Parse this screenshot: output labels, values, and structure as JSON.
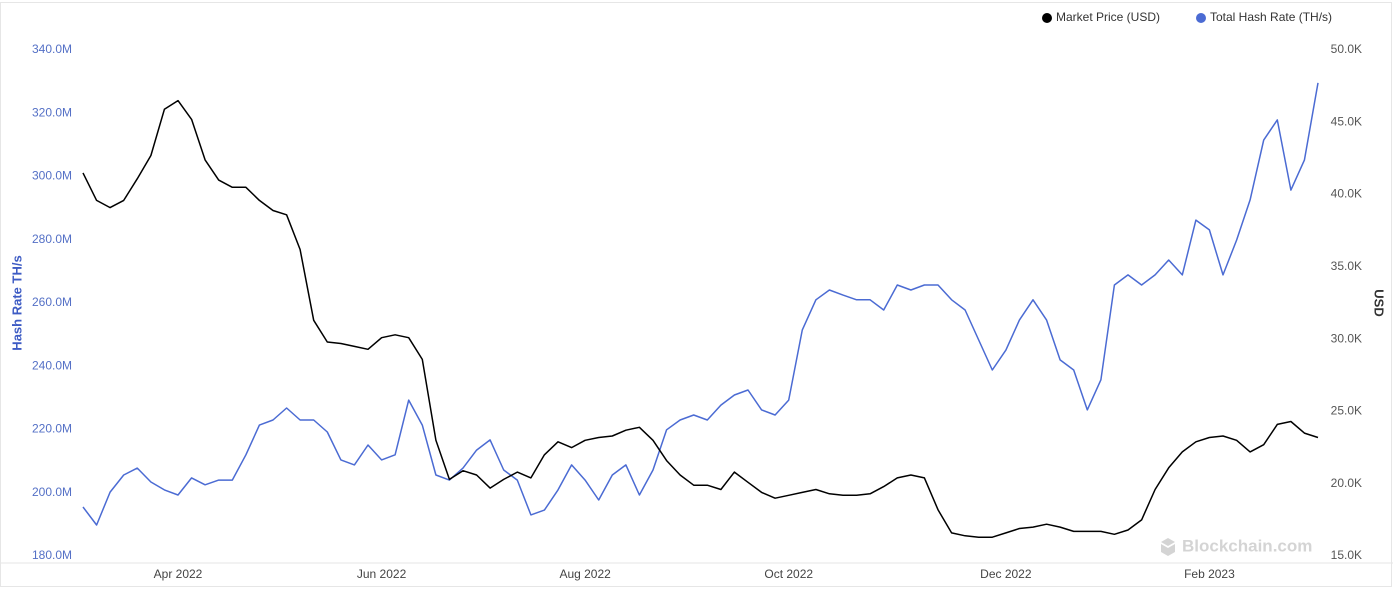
{
  "chart_data": {
    "type": "line",
    "legend": "top-right",
    "grid": false,
    "watermark": "Blockchain.com",
    "ylabel": "Hash Rate TH/s",
    "y2label": "USD",
    "categories": [
      null,
      null,
      null,
      null,
      null,
      null,
      null,
      "Apr 2022",
      null,
      null,
      null,
      null,
      null,
      null,
      null,
      null,
      null,
      null,
      null,
      null,
      null,
      null,
      "Jun 2022",
      null,
      null,
      null,
      null,
      null,
      null,
      null,
      null,
      null,
      null,
      null,
      null,
      null,
      null,
      "Aug 2022",
      null,
      null,
      null,
      null,
      null,
      null,
      null,
      null,
      null,
      null,
      null,
      null,
      null,
      null,
      "Oct 2022",
      null,
      null,
      null,
      null,
      null,
      null,
      null,
      null,
      null,
      null,
      null,
      null,
      null,
      null,
      null,
      "Dec 2022",
      null,
      null,
      null,
      null,
      null,
      null,
      null,
      null,
      null,
      null,
      null,
      null,
      null,
      null,
      "Feb 2023",
      null,
      null,
      null,
      null,
      null,
      null,
      null,
      null
    ],
    "ylim": [
      180,
      340
    ],
    "yticks": [
      {
        "value": 180,
        "label": "180.0M"
      },
      {
        "value": 200,
        "label": "200.0M"
      },
      {
        "value": 220,
        "label": "220.0M"
      },
      {
        "value": 240,
        "label": "240.0M"
      },
      {
        "value": 260,
        "label": "260.0M"
      },
      {
        "value": 280,
        "label": "280.0M"
      },
      {
        "value": 300,
        "label": "300.0M"
      },
      {
        "value": 320,
        "label": "320.0M"
      },
      {
        "value": 340,
        "label": "340.0M"
      }
    ],
    "y2lim": [
      15,
      50
    ],
    "y2ticks": [
      {
        "value": 15,
        "label": "15.0K"
      },
      {
        "value": 20,
        "label": "20.0K"
      },
      {
        "value": 25,
        "label": "25.0K"
      },
      {
        "value": 30,
        "label": "30.0K"
      },
      {
        "value": 35,
        "label": "35.0K"
      },
      {
        "value": 40,
        "label": "40.0K"
      },
      {
        "value": 45,
        "label": "45.0K"
      },
      {
        "value": 50,
        "label": "50.0K"
      }
    ],
    "series": [
      {
        "name": "Market Price (USD)",
        "color": "#000000",
        "axis": "y2",
        "values": [
          41.5,
          39.6,
          39.1,
          39.6,
          41.1,
          42.7,
          45.9,
          46.5,
          45.2,
          42.4,
          41.0,
          40.5,
          40.5,
          39.6,
          38.9,
          38.6,
          36.2,
          31.3,
          29.8,
          29.7,
          29.5,
          29.3,
          30.1,
          30.3,
          30.1,
          28.6,
          23.0,
          20.3,
          20.9,
          20.6,
          19.7,
          20.3,
          20.8,
          20.4,
          22.0,
          22.9,
          22.5,
          23.0,
          23.2,
          23.3,
          23.7,
          23.9,
          23.0,
          21.6,
          20.6,
          19.9,
          19.9,
          19.6,
          20.8,
          20.1,
          19.4,
          19.0,
          19.2,
          19.4,
          19.6,
          19.3,
          19.2,
          19.2,
          19.3,
          19.8,
          20.4,
          20.6,
          20.4,
          18.2,
          16.6,
          16.4,
          16.3,
          16.3,
          16.6,
          16.9,
          17.0,
          17.2,
          17.0,
          16.7,
          16.7,
          16.7,
          16.5,
          16.8,
          17.5,
          19.6,
          21.1,
          22.2,
          22.9,
          23.2,
          23.3,
          23.0,
          22.2,
          22.7,
          24.1,
          24.3,
          23.5,
          23.2
        ]
      },
      {
        "name": "Total Hash Rate (TH/s)",
        "color": "#4b6bd3",
        "values": [
          195.5,
          189.8,
          200.2,
          205.6,
          207.8,
          203.4,
          200.9,
          199.3,
          204.7,
          202.5,
          204,
          204,
          212,
          221.4,
          223,
          226.8,
          223,
          223,
          219.2,
          210.4,
          208.8,
          215.1,
          210.4,
          212,
          229.3,
          221.4,
          205.6,
          204,
          207.8,
          213.5,
          216.7,
          207.2,
          204,
          193,
          194.5,
          200.9,
          208.8,
          204,
          197.7,
          205.6,
          208.8,
          199.3,
          207.2,
          219.9,
          223,
          224.6,
          223,
          227.7,
          230.9,
          232.5,
          226.2,
          224.6,
          229.3,
          251.5,
          261,
          264.1,
          262.5,
          261,
          261,
          257.8,
          265.7,
          264.1,
          265.7,
          265.7,
          261,
          257.8,
          248.3,
          238.8,
          245.1,
          254.6,
          261,
          254.6,
          242,
          238.8,
          226.2,
          235.7,
          265.7,
          268.9,
          265.7,
          268.9,
          273.6,
          268.9,
          286.2,
          283.1,
          268.9,
          279.9,
          292.6,
          311.5,
          317.9,
          295.7,
          305.2,
          329.6
        ]
      }
    ]
  }
}
